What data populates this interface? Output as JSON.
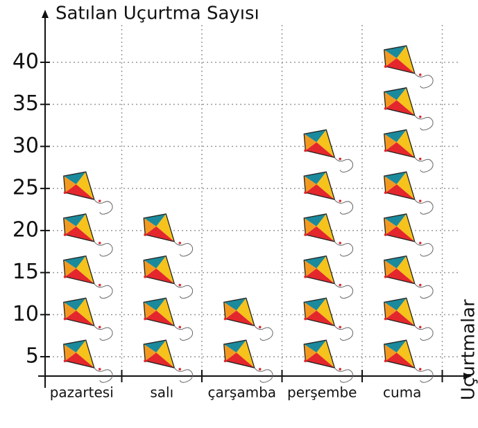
{
  "chart_data": {
    "type": "pictograph",
    "y_axis_label": "Satılan Uçurtma Sayısı",
    "x_axis_label": "Uçurtmalar",
    "categories": [
      "pazartesi",
      "salı",
      "çarşamba",
      "perşembe",
      "cuma"
    ],
    "values": [
      25,
      20,
      10,
      30,
      40
    ],
    "ylim": [
      2.7,
      45.1
    ],
    "yticks": [
      5,
      10,
      15,
      20,
      25,
      30,
      35,
      40
    ],
    "grid": true
  }
}
